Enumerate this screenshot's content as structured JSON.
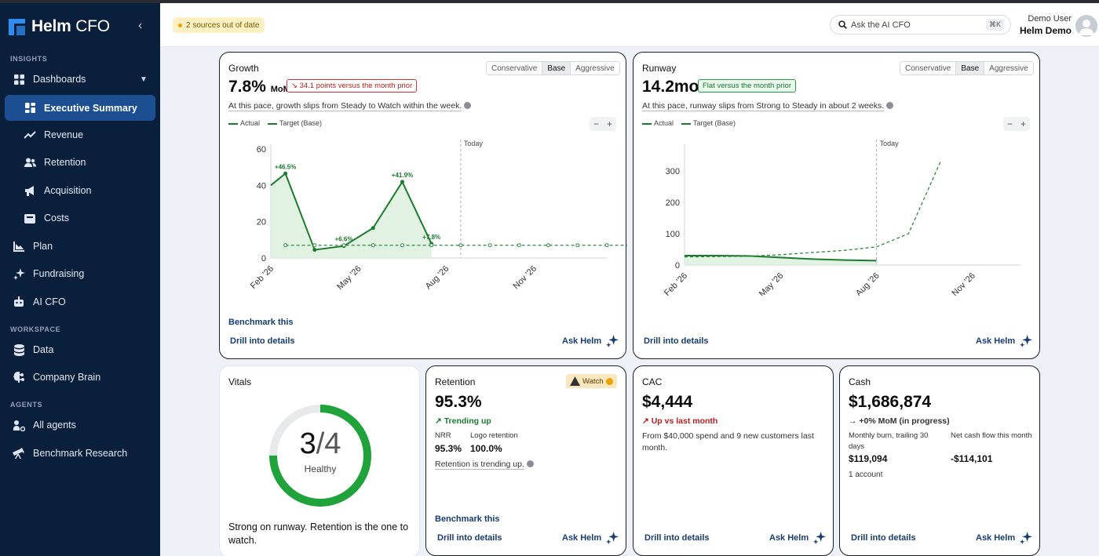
{
  "app": {
    "name_bold": "Helm",
    "name_rest": " CFO"
  },
  "sidebar": {
    "sections": [
      "INSIGHTS",
      "WORKSPACE",
      "AGENTS"
    ],
    "items": [
      {
        "label": "Dashboards",
        "icon": "grid-icon"
      },
      {
        "label": "Executive Summary",
        "icon": "grid-icon"
      },
      {
        "label": "Revenue",
        "icon": "trend-up-icon"
      },
      {
        "label": "Retention",
        "icon": "users-icon"
      },
      {
        "label": "Acquisition",
        "icon": "megaphone-icon"
      },
      {
        "label": "Costs",
        "icon": "wallet-icon"
      },
      {
        "label": "Plan",
        "icon": "chart-axis-icon"
      },
      {
        "label": "Fundraising",
        "icon": "sparkle-icon"
      },
      {
        "label": "AI CFO",
        "icon": "robot-icon"
      },
      {
        "label": "Data",
        "icon": "database-icon"
      },
      {
        "label": "Company Brain",
        "icon": "brain-icon"
      },
      {
        "label": "All agents",
        "icon": "agents-icon"
      },
      {
        "label": "Benchmark Research",
        "icon": "telescope-icon"
      }
    ]
  },
  "topbar": {
    "stale": "2 sources out of date",
    "search_placeholder": "Ask the AI CFO",
    "shortcut": "⌘K",
    "user_role": "Demo User",
    "user_name": "Helm Demo"
  },
  "scenarios": [
    "Conservative",
    "Base",
    "Aggressive"
  ],
  "growth": {
    "title": "Growth",
    "value": "7.8%",
    "unit": "MoM",
    "delta": "↘ 34.1 points versus the month prior",
    "note": "At this pace, growth slips from Steady to Watch within the week.",
    "legend_actual": "Actual",
    "legend_target": "Target (Base)",
    "today": "Today",
    "benchmark": "Benchmark this",
    "drill": "Drill into details",
    "ask": "Ask Helm"
  },
  "runway": {
    "title": "Runway",
    "value": "14.2mo",
    "delta": "Flat versus the month prior",
    "note": "At this pace, runway slips from Strong to Steady in about 2 weeks.",
    "legend_actual": "Actual",
    "legend_target": "Target (Base)",
    "today": "Today",
    "drill": "Drill into details",
    "ask": "Ask Helm"
  },
  "vitals": {
    "title": "Vitals",
    "score": "3",
    "of": "/4",
    "status": "Healthy",
    "fraction": 0.75,
    "summary": "Strong on runway. Retention is the one to watch."
  },
  "retention": {
    "title": "Retention",
    "badge": "Watch",
    "value": "95.3%",
    "trend": "↗ Trending up",
    "nrr_label": "NRR",
    "nrr": "95.3%",
    "logo_label": "Logo retention",
    "logo": "100.0%",
    "note": "Retention is trending up.",
    "benchmark": "Benchmark this",
    "drill": "Drill into details",
    "ask": "Ask Helm"
  },
  "cac": {
    "title": "CAC",
    "value": "$4,444",
    "trend": "↗ Up vs last month",
    "desc": "From $40,000 spend and 9 new customers last month.",
    "drill": "Drill into details",
    "ask": "Ask Helm"
  },
  "cash": {
    "title": "Cash",
    "value": "$1,686,874",
    "trend": "→ +0% MoM (in progress)",
    "burn_label": "Monthly burn, trailing 30 days",
    "burn": "$119,094",
    "flow_label": "Net cash flow this month",
    "flow": "-$114,101",
    "accounts": "1 account",
    "drill": "Drill into details",
    "ask": "Ask Helm"
  },
  "chart_data": [
    {
      "type": "line",
      "title": "Growth",
      "x_ticks": [
        "Feb '26",
        "May '26",
        "Aug '26",
        "Nov '26"
      ],
      "y_ticks": [
        0,
        20,
        40,
        60
      ],
      "ylim": [
        0,
        60
      ],
      "series": [
        {
          "name": "Actual",
          "x": [
            0,
            0.5,
            1.5,
            2.5,
            3.5,
            4.5,
            5.5
          ],
          "values": [
            40,
            46.5,
            4.5,
            6.6,
            16.5,
            41.9,
            7.8
          ]
        },
        {
          "name": "Target (Base)",
          "x": [
            0.5,
            1.5,
            2.5,
            3.5,
            4.5,
            5.5,
            6.5,
            7.5,
            8.5,
            9.5,
            10.5,
            11.5,
            12.5
          ],
          "values": [
            7,
            7,
            7,
            7,
            7,
            7,
            7,
            7,
            7,
            7,
            7,
            7,
            7
          ]
        }
      ],
      "data_labels": [
        "+46.5%",
        "+6.6%",
        "+41.9%",
        "+7.8%"
      ],
      "today_x": 6.5
    },
    {
      "type": "line",
      "title": "Runway",
      "x_ticks": [
        "Feb '26",
        "May '26",
        "Aug '26",
        "Nov '26"
      ],
      "y_ticks": [
        0,
        100,
        200,
        300
      ],
      "ylim": [
        0,
        370
      ],
      "series": [
        {
          "name": "Actual",
          "x": [
            0,
            1,
            2,
            3,
            4,
            5,
            6
          ],
          "values": [
            30,
            30,
            29,
            24,
            19,
            16,
            14
          ]
        },
        {
          "name": "Target (Base)",
          "x": [
            0,
            2,
            3,
            4,
            5,
            6,
            7,
            8
          ],
          "values": [
            26,
            28,
            33,
            40,
            47,
            58,
            100,
            330
          ]
        }
      ],
      "today_x": 6
    }
  ]
}
